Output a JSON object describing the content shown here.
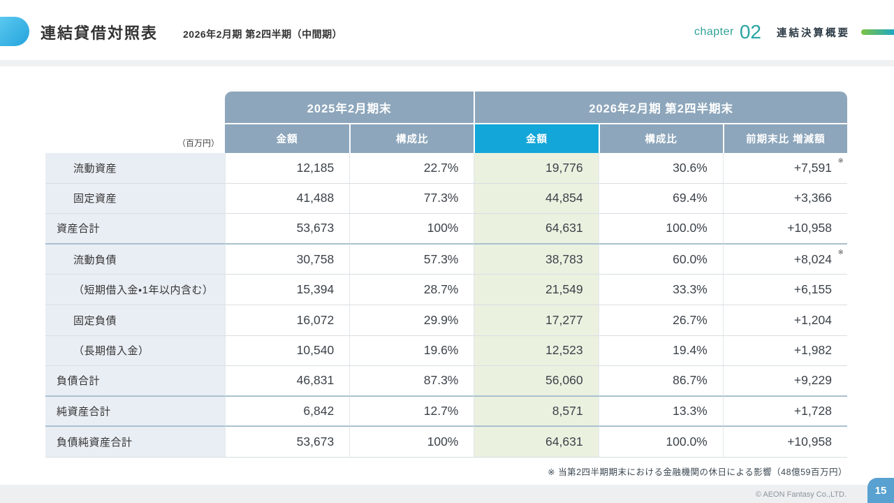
{
  "header": {
    "title": "連結貸借対照表",
    "subtitle": "2026年2月期 第2四半期（中間期）",
    "chapter_label": "chapter",
    "chapter_number": "02",
    "chapter_section": "連結決算概要"
  },
  "table": {
    "unit": "（百万円）",
    "group_2025": "2025年2月期末",
    "group_2026": "2026年2月期 第2四半期末",
    "subheaders": {
      "amount_2025": "金額",
      "ratio_2025": "構成比",
      "amount_2026": "金額",
      "ratio_2026": "構成比",
      "change": "前期末比 増減額"
    },
    "note_symbol": "※",
    "rows": [
      {
        "label": "流動資産",
        "indent": true,
        "a1": "12,185",
        "a2": "22.7%",
        "b1": "19,776",
        "b2": "30.6%",
        "b3": "+7,591",
        "note": true,
        "section_end": false
      },
      {
        "label": "固定資産",
        "indent": true,
        "a1": "41,488",
        "a2": "77.3%",
        "b1": "44,854",
        "b2": "69.4%",
        "b3": "+3,366",
        "note": false,
        "section_end": false
      },
      {
        "label": "資産合計",
        "indent": false,
        "a1": "53,673",
        "a2": "100%",
        "b1": "64,631",
        "b2": "100.0%",
        "b3": "+10,958",
        "note": false,
        "section_end": true
      },
      {
        "label": "流動負債",
        "indent": true,
        "a1": "30,758",
        "a2": "57.3%",
        "b1": "38,783",
        "b2": "60.0%",
        "b3": "+8,024",
        "note": true,
        "section_end": false
      },
      {
        "label": "（短期借入金・1年以内含む）",
        "indent": true,
        "a1": "15,394",
        "a2": "28.7%",
        "b1": "21,549",
        "b2": "33.3%",
        "b3": "+6,155",
        "note": false,
        "section_end": false
      },
      {
        "label": "固定負債",
        "indent": true,
        "a1": "16,072",
        "a2": "29.9%",
        "b1": "17,277",
        "b2": "26.7%",
        "b3": "+1,204",
        "note": false,
        "section_end": false
      },
      {
        "label": "（長期借入金）",
        "indent": true,
        "a1": "10,540",
        "a2": "19.6%",
        "b1": "12,523",
        "b2": "19.4%",
        "b3": "+1,982",
        "note": false,
        "section_end": false
      },
      {
        "label": "負債合計",
        "indent": false,
        "a1": "46,831",
        "a2": "87.3%",
        "b1": "56,060",
        "b2": "86.7%",
        "b3": "+9,229",
        "note": false,
        "section_end": true
      },
      {
        "label": "純資産合計",
        "indent": false,
        "a1": "6,842",
        "a2": "12.7%",
        "b1": "8,571",
        "b2": "13.3%",
        "b3": "+1,728",
        "note": false,
        "section_end": true
      },
      {
        "label": "負債純資産合計",
        "indent": false,
        "a1": "53,673",
        "a2": "100%",
        "b1": "64,631",
        "b2": "100.0%",
        "b3": "+10,958",
        "note": false,
        "section_end": false
      }
    ]
  },
  "footnote": "※ 当第2四半期期末における金融機関の休日による影響（48億59百万円）",
  "footer": {
    "copyright": "© AEON Fantasy Co.,LTD.",
    "page_number": "15"
  },
  "colors": {
    "accent_blue": "#13a6d9",
    "header_gray_blue": "#8da6bb",
    "highlight_green": "#ebf1df",
    "label_bg": "#e9eef4",
    "page_box_blue": "#58a1d0",
    "chapter_teal": "#2ea195"
  }
}
